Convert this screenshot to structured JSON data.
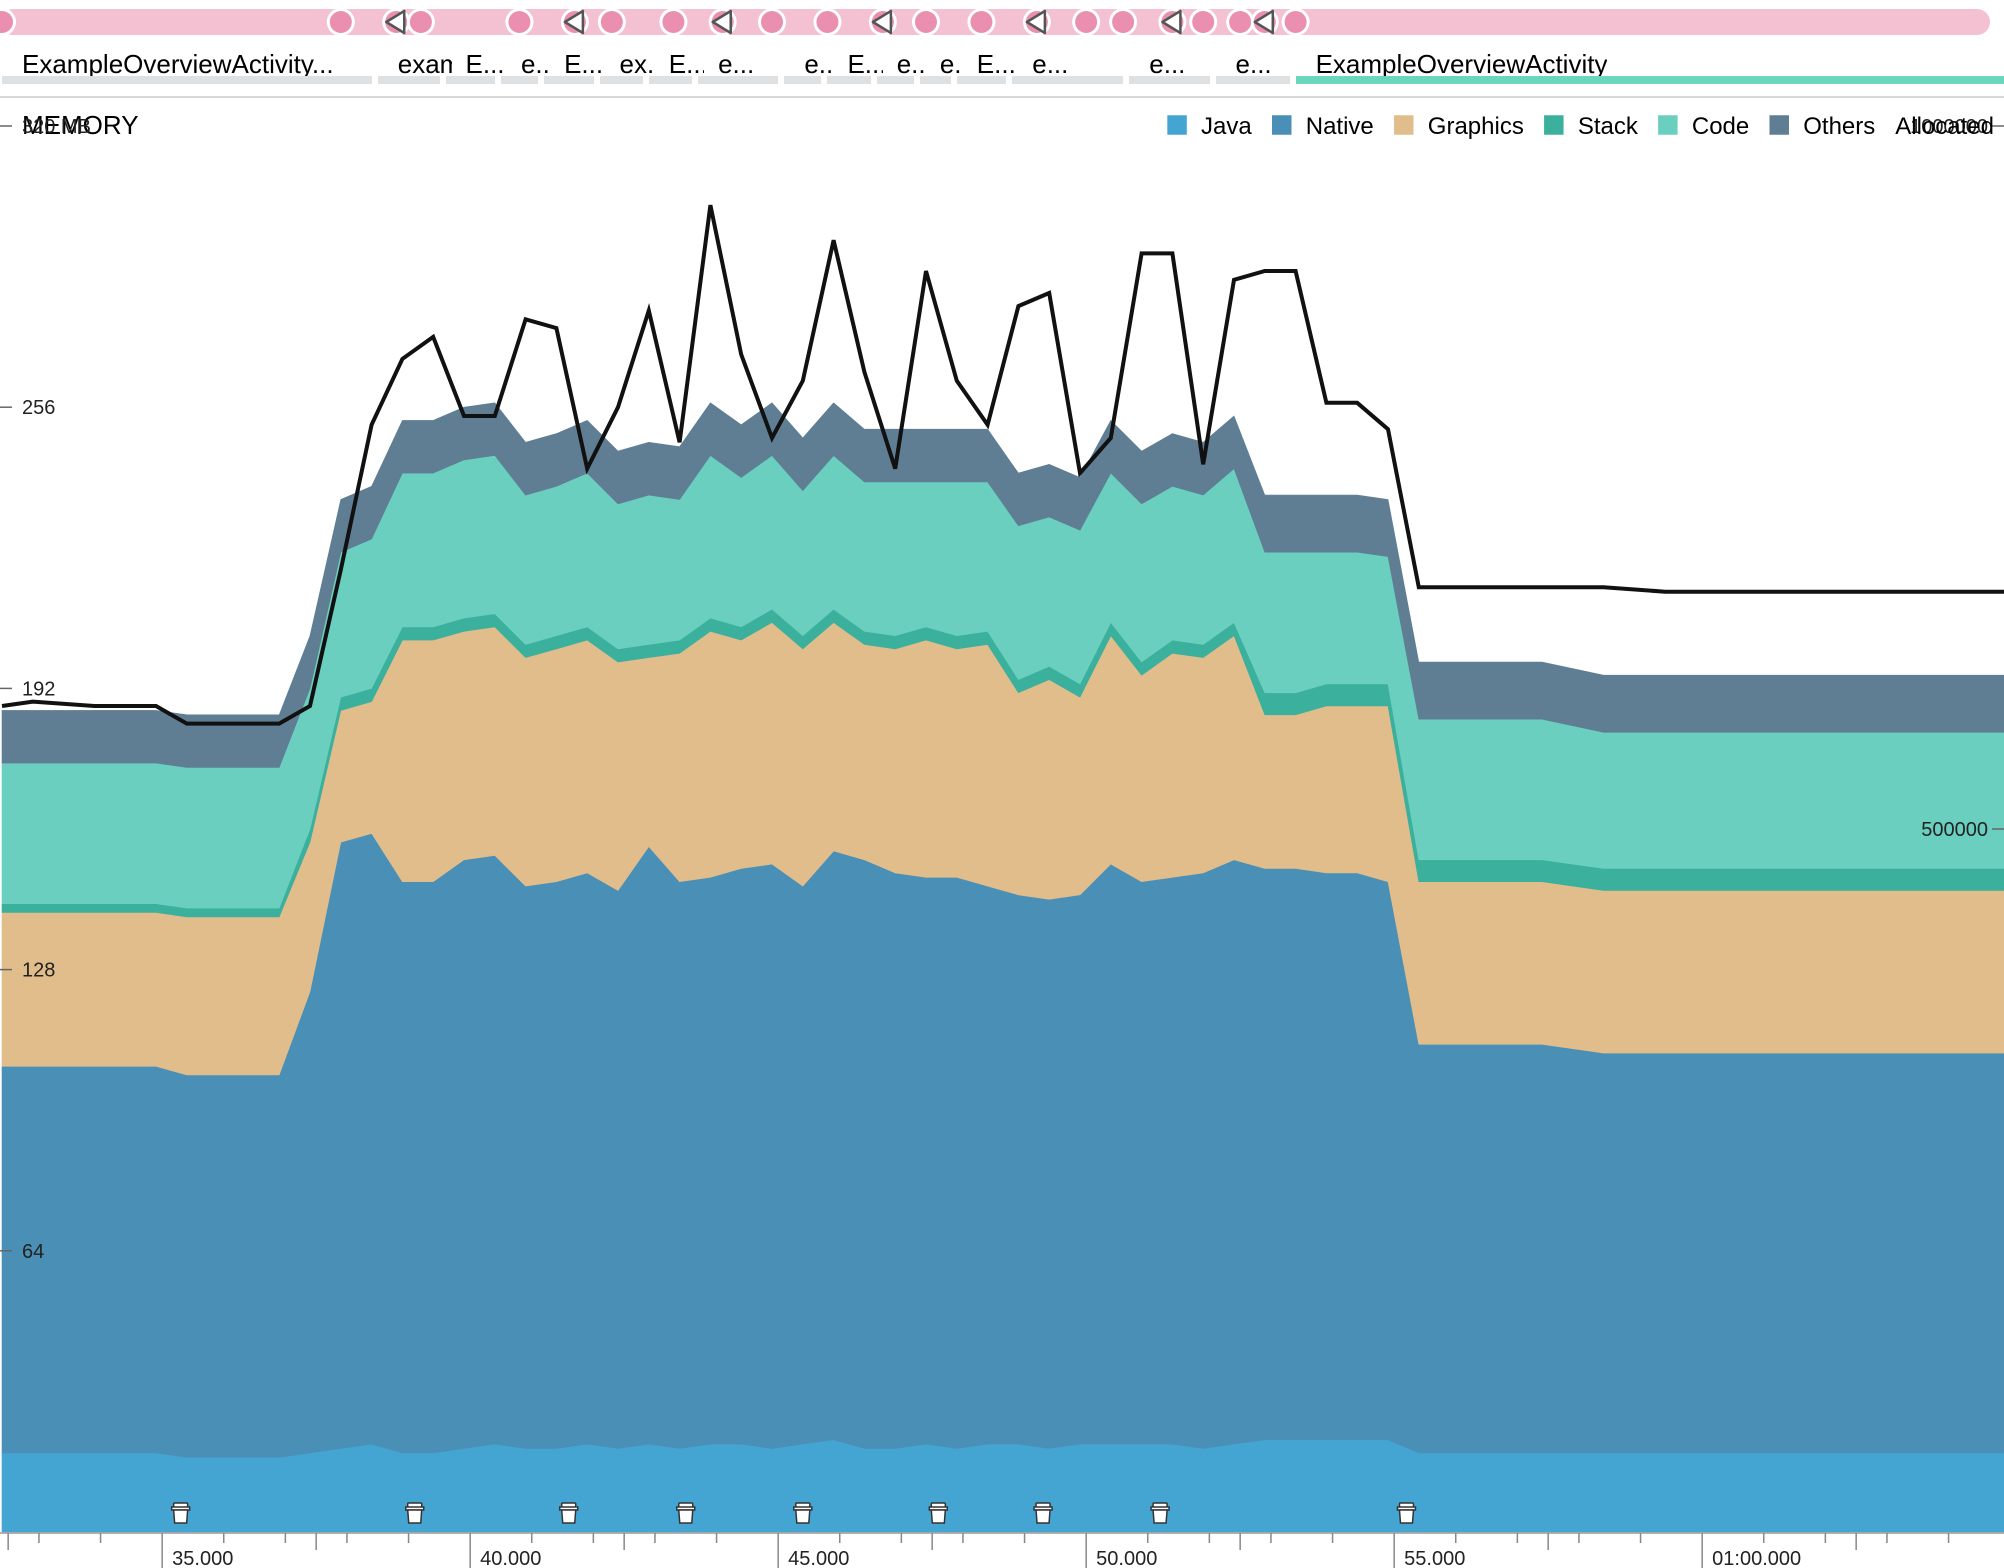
{
  "chart_title": "MEMORY",
  "activities": [
    {
      "label": "ExampleOverviewActivity...",
      "active": false
    },
    {
      "label": "examp...",
      "active": false
    },
    {
      "label": "E...",
      "active": false
    },
    {
      "label": "e...",
      "active": false
    },
    {
      "label": "E...",
      "active": false
    },
    {
      "label": "ex...",
      "active": false
    },
    {
      "label": "E...",
      "active": false
    },
    {
      "label": "e...",
      "active": false
    },
    {
      "label": "e...",
      "active": false
    },
    {
      "label": "E...",
      "active": false
    },
    {
      "label": "e...",
      "active": false
    },
    {
      "label": "e...",
      "active": false
    },
    {
      "label": "E...",
      "active": false
    },
    {
      "label": "e...",
      "active": false
    },
    {
      "label": "e...",
      "active": false
    },
    {
      "label": "e...",
      "active": false
    },
    {
      "label": "ExampleOverviewActivity",
      "active": true
    }
  ],
  "colors": {
    "Java": "#45a5d2",
    "Native": "#4a8fb5",
    "Graphics": "#e1bd8c",
    "Stack": "#3bb09c",
    "Code": "#6acfbf",
    "Others": "#5f7e94",
    "event_track": "#f4c1d3",
    "event_marker": "#ea8fb0",
    "activity_inactive": "#dde1e4",
    "activity_active": "#6ad6bd"
  },
  "chart_data": {
    "type": "area",
    "title": "MEMORY",
    "stacked": true,
    "left_axis": {
      "unit": "MB",
      "range": [
        0,
        320
      ],
      "ticks": [
        64,
        128,
        192,
        256,
        320
      ],
      "tick_labels": [
        "64",
        "128",
        "192",
        "256",
        "320 MB"
      ]
    },
    "right_axis": {
      "label": "Allocated",
      "range": [
        0,
        1000000
      ],
      "ticks": [
        500000,
        1000000
      ],
      "tick_labels": [
        "500000",
        "1000000"
      ]
    },
    "x_axis": {
      "range": [
        32.4,
        64.9
      ],
      "ticks": [
        35,
        40,
        45,
        50,
        55,
        60
      ],
      "tick_labels": [
        "35.000",
        "40.000",
        "45.000",
        "50.000",
        "55.000",
        "01:00.000"
      ]
    },
    "legend": {
      "placement": "top-right",
      "entries": [
        "Java",
        "Native",
        "Graphics",
        "Stack",
        "Code",
        "Others",
        "Allocated"
      ]
    },
    "grid": false,
    "x": [
      32.4,
      32.9,
      33.9,
      34.9,
      35.4,
      35.9,
      36.9,
      37.4,
      37.9,
      38.4,
      38.9,
      39.4,
      39.9,
      40.4,
      40.9,
      41.4,
      41.9,
      42.4,
      42.9,
      43.4,
      43.9,
      44.4,
      44.9,
      45.4,
      45.9,
      46.4,
      46.9,
      47.4,
      47.9,
      48.4,
      48.9,
      49.4,
      49.9,
      50.4,
      50.9,
      51.4,
      51.9,
      52.4,
      52.9,
      53.4,
      53.9,
      54.4,
      54.9,
      55.4,
      56.9,
      57.4,
      58.4,
      59.4,
      60.4,
      61.4,
      62.4,
      63.4,
      64.4,
      64.9
    ],
    "series": [
      {
        "name": "Java",
        "values": [
          18,
          18,
          18,
          18,
          17,
          17,
          17,
          18,
          19,
          20,
          18,
          18,
          19,
          20,
          19,
          19,
          20,
          19,
          20,
          19,
          20,
          20,
          19,
          20,
          21,
          19,
          19,
          20,
          19,
          20,
          20,
          19,
          20,
          20,
          20,
          20,
          19,
          20,
          21,
          21,
          21,
          21,
          21,
          18,
          18,
          18,
          18,
          18,
          18,
          18,
          18,
          18,
          18,
          18
        ]
      },
      {
        "name": "Native",
        "values": [
          88,
          88,
          88,
          88,
          87,
          87,
          87,
          105,
          138,
          139,
          130,
          130,
          134,
          134,
          128,
          129,
          130,
          127,
          136,
          129,
          129,
          131,
          133,
          127,
          134,
          134,
          131,
          129,
          130,
          127,
          125,
          125,
          125,
          132,
          128,
          129,
          131,
          133,
          130,
          130,
          129,
          129,
          127,
          93,
          93,
          93,
          91,
          91,
          91,
          91,
          91,
          91,
          91,
          91
        ]
      },
      {
        "name": "Graphics",
        "values": [
          35,
          35,
          35,
          35,
          36,
          36,
          36,
          34,
          30,
          30,
          55,
          55,
          52,
          52,
          52,
          53,
          53,
          52,
          43,
          52,
          56,
          52,
          55,
          54,
          52,
          49,
          51,
          54,
          52,
          55,
          46,
          50,
          45,
          52,
          47,
          51,
          49,
          51,
          35,
          35,
          38,
          38,
          40,
          37,
          37,
          37,
          37,
          37,
          37,
          37,
          37,
          37,
          37,
          37
        ]
      },
      {
        "name": "Stack",
        "values": [
          2,
          2,
          2,
          2,
          2,
          2,
          2,
          3,
          3,
          3,
          3,
          3,
          3,
          3,
          3,
          3,
          3,
          3,
          3,
          3,
          3,
          3,
          3,
          3,
          3,
          3,
          3,
          3,
          3,
          3,
          3,
          3,
          3,
          3,
          3,
          3,
          3,
          3,
          5,
          5,
          5,
          5,
          5,
          5,
          5,
          5,
          5,
          5,
          5,
          5,
          5,
          5,
          5,
          5
        ]
      },
      {
        "name": "Code",
        "values": [
          32,
          32,
          32,
          32,
          32,
          32,
          32,
          32,
          33,
          34,
          35,
          35,
          36,
          36,
          34,
          34,
          35,
          33,
          34,
          32,
          37,
          34,
          35,
          33,
          35,
          34,
          35,
          33,
          35,
          34,
          35,
          34,
          35,
          34,
          36,
          35,
          34,
          35,
          32,
          32,
          30,
          30,
          29,
          32,
          32,
          32,
          31,
          31,
          31,
          31,
          31,
          31,
          31,
          31
        ]
      },
      {
        "name": "Others",
        "values": [
          12,
          12,
          12,
          12,
          12,
          12,
          12,
          12,
          12,
          12,
          12,
          12,
          12,
          12,
          12,
          12,
          12,
          12,
          12,
          12,
          12,
          12,
          12,
          12,
          12,
          12,
          12,
          12,
          12,
          12,
          12,
          12,
          12,
          12,
          12,
          12,
          12,
          12,
          13,
          13,
          13,
          13,
          13,
          13,
          13,
          13,
          13,
          13,
          13,
          13,
          13,
          13,
          13,
          13
        ]
      }
    ],
    "total_mb": [
      188,
      189,
      188,
      188,
      184,
      184,
      184,
      188,
      219,
      252,
      267,
      272,
      254,
      254,
      276,
      274,
      242,
      256,
      278,
      248,
      302,
      268,
      249,
      262,
      294,
      264,
      242,
      287,
      262,
      252,
      279,
      282,
      241,
      249,
      291,
      291,
      243,
      285,
      287,
      287,
      257,
      257,
      251,
      215,
      215,
      215,
      215,
      214,
      214,
      214,
      214,
      214,
      214,
      214
    ],
    "allocated": [],
    "gc_event_times": [
      35.3,
      39.1,
      41.6,
      43.5,
      45.4,
      47.6,
      49.3,
      51.2,
      55.2
    ],
    "event_marker_times": [
      32.4,
      37.9,
      38.8,
      39.2,
      40.8,
      41.7,
      42.3,
      43.3,
      44.1,
      44.9,
      45.8,
      46.7,
      47.4,
      48.3,
      49.2,
      50.0,
      50.6,
      51.4,
      51.9,
      52.5,
      52.9,
      53.4
    ]
  }
}
